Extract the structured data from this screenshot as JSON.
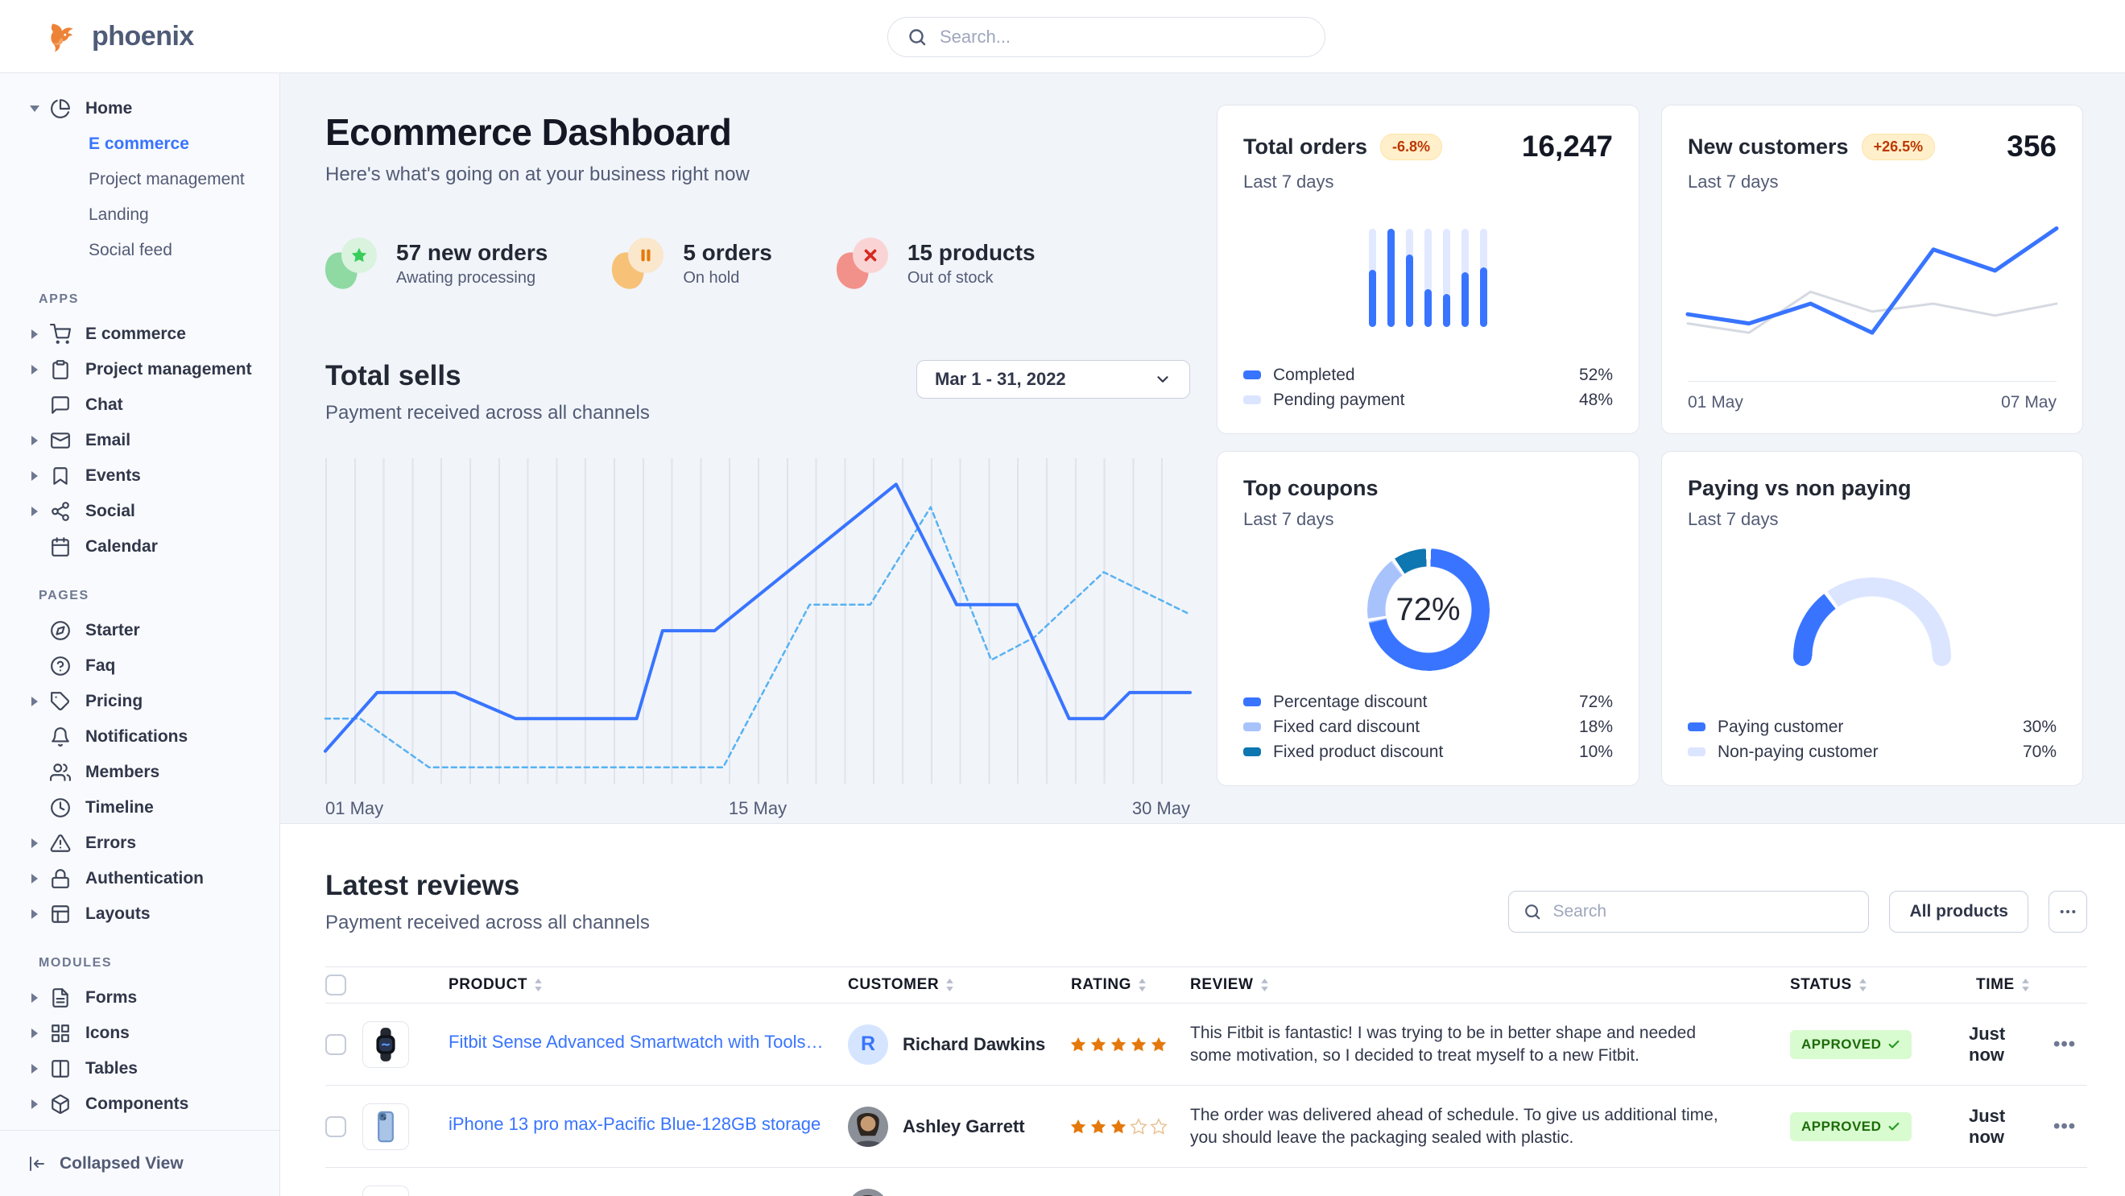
{
  "theme": {
    "primary": "#3874ff",
    "primary_light": "#dbe5ff",
    "donut_light": "#a8c2fc",
    "info_dark": "#0e76b1",
    "dashed_line": "#58b2f2",
    "gray_line": "#d5d9e1"
  },
  "navbar": {
    "logo_text": "phoenix",
    "search_placeholder": "Search..."
  },
  "sidebar": {
    "groups": [
      {
        "label": "",
        "items": [
          {
            "label": "Home",
            "icon": "pie-chart",
            "caret": "down",
            "children": [
              {
                "label": "E commerce",
                "active": true
              },
              {
                "label": "Project management",
                "active": false
              },
              {
                "label": "Landing",
                "active": false
              },
              {
                "label": "Social feed",
                "active": false
              }
            ]
          }
        ]
      },
      {
        "label": "APPS",
        "items": [
          {
            "label": "E commerce",
            "icon": "cart",
            "caret": "right"
          },
          {
            "label": "Project management",
            "icon": "clipboard",
            "caret": "right"
          },
          {
            "label": "Chat",
            "icon": "chat",
            "caret": ""
          },
          {
            "label": "Email",
            "icon": "mail",
            "caret": "right"
          },
          {
            "label": "Events",
            "icon": "bookmark",
            "caret": "right"
          },
          {
            "label": "Social",
            "icon": "share",
            "caret": "right"
          },
          {
            "label": "Calendar",
            "icon": "calendar",
            "caret": ""
          }
        ]
      },
      {
        "label": "PAGES",
        "items": [
          {
            "label": "Starter",
            "icon": "compass",
            "caret": ""
          },
          {
            "label": "Faq",
            "icon": "help-circle",
            "caret": ""
          },
          {
            "label": "Pricing",
            "icon": "tag",
            "caret": "right"
          },
          {
            "label": "Notifications",
            "icon": "bell",
            "caret": ""
          },
          {
            "label": "Members",
            "icon": "users",
            "caret": ""
          },
          {
            "label": "Timeline",
            "icon": "clock",
            "caret": ""
          },
          {
            "label": "Errors",
            "icon": "alert-triangle",
            "caret": "right"
          },
          {
            "label": "Authentication",
            "icon": "lock",
            "caret": "right"
          },
          {
            "label": "Layouts",
            "icon": "layout",
            "caret": "right"
          }
        ]
      },
      {
        "label": "MODULES",
        "items": [
          {
            "label": "Forms",
            "icon": "file-text",
            "caret": "right"
          },
          {
            "label": "Icons",
            "icon": "grid",
            "caret": "right"
          },
          {
            "label": "Tables",
            "icon": "columns",
            "caret": "right"
          },
          {
            "label": "Components",
            "icon": "package",
            "caret": "right"
          }
        ]
      }
    ],
    "footer_label": "Collapsed View"
  },
  "page": {
    "title": "Ecommerce Dashboard",
    "subtitle": "Here's what's going on at your business right now"
  },
  "stats": [
    {
      "value": "57 new orders",
      "caption": "Awating processing",
      "icon": "star",
      "blob": "#8fd9a2",
      "circle": "#d9f3de",
      "glyph": "#39cc5a"
    },
    {
      "value": "5 orders",
      "caption": "On hold",
      "icon": "pause",
      "blob": "#f7c277",
      "circle": "#fae7cc",
      "glyph": "#e5780b"
    },
    {
      "value": "15 products",
      "caption": "Out of stock",
      "icon": "x",
      "blob": "#f2918a",
      "circle": "#fad4d4",
      "glyph": "#d5281f"
    }
  ],
  "total_sells": {
    "title": "Total sells",
    "subtitle": "Payment received across all channels",
    "date_range": "Mar 1 - 31, 2022",
    "x_labels": [
      "01 May",
      "15 May",
      "30 May"
    ]
  },
  "cards": {
    "total_orders": {
      "title": "Total orders",
      "badge": "-6.8%",
      "subtitle": "Last 7 days",
      "value": "16,247",
      "legend": [
        {
          "label": "Completed",
          "value": "52%",
          "color": "#3874ff"
        },
        {
          "label": "Pending payment",
          "value": "48%",
          "color": "#dbe5ff"
        }
      ]
    },
    "new_customers": {
      "title": "New customers",
      "badge": "+26.5%",
      "subtitle": "Last 7 days",
      "value": "356",
      "x_labels": [
        "01 May",
        "07 May"
      ]
    },
    "top_coupons": {
      "title": "Top coupons",
      "subtitle": "Last 7 days",
      "center_label": "72%",
      "legend": [
        {
          "label": "Percentage discount",
          "value": "72%",
          "color": "#3874ff"
        },
        {
          "label": "Fixed card discount",
          "value": "18%",
          "color": "#a8c2fc"
        },
        {
          "label": "Fixed product discount",
          "value": "10%",
          "color": "#0e76b1"
        }
      ]
    },
    "paying": {
      "title": "Paying vs non paying",
      "subtitle": "Last 7 days",
      "legend": [
        {
          "label": "Paying customer",
          "value": "30%",
          "color": "#3874ff"
        },
        {
          "label": "Non-paying customer",
          "value": "70%",
          "color": "#dbe5ff"
        }
      ]
    }
  },
  "chart_data": [
    {
      "id": "total-sells",
      "type": "line",
      "title": "Total sells",
      "x_labels": [
        "01 May",
        "15 May",
        "30 May"
      ],
      "ylim": [
        0,
        100
      ],
      "grid": "vertical",
      "series": [
        {
          "name": "current",
          "style": "solid",
          "color": "#3874ff",
          "points": [
            [
              0,
              10
            ],
            [
              6,
              28
            ],
            [
              15,
              28
            ],
            [
              22,
              20
            ],
            [
              36,
              20
            ],
            [
              39,
              47
            ],
            [
              45,
              47
            ],
            [
              66,
              92
            ],
            [
              73,
              55
            ],
            [
              80,
              55
            ],
            [
              86,
              20
            ],
            [
              90,
              20
            ],
            [
              93,
              28
            ],
            [
              100,
              28
            ]
          ]
        },
        {
          "name": "previous",
          "style": "dashed",
          "color": "#58b2f2",
          "points": [
            [
              0,
              20
            ],
            [
              4,
              20
            ],
            [
              12,
              5
            ],
            [
              46,
              5
            ],
            [
              56,
              55
            ],
            [
              63,
              55
            ],
            [
              70,
              85
            ],
            [
              77,
              38
            ],
            [
              82,
              45
            ],
            [
              90,
              65
            ],
            [
              100,
              52
            ]
          ]
        }
      ]
    },
    {
      "id": "total-orders",
      "type": "bar",
      "title": "Total orders",
      "completed_pct": [
        58,
        100,
        73,
        38,
        33,
        55,
        60
      ],
      "legend_values": {
        "completed": 52,
        "pending": 48
      }
    },
    {
      "id": "new-customers",
      "type": "line",
      "title": "New customers",
      "x_labels": [
        "01 May",
        "07 May"
      ],
      "ylim": [
        0,
        100
      ],
      "series": [
        {
          "name": "previous",
          "style": "solid",
          "color": "#d5d9e1",
          "points": [
            [
              0,
              24
            ],
            [
              16.6,
              17
            ],
            [
              33.3,
              48
            ],
            [
              50,
              33
            ],
            [
              66.6,
              39
            ],
            [
              83.3,
              30
            ],
            [
              100,
              39
            ]
          ]
        },
        {
          "name": "current",
          "style": "solid",
          "color": "#3874ff",
          "points": [
            [
              0,
              31
            ],
            [
              16.6,
              24
            ],
            [
              33.3,
              39
            ],
            [
              50,
              17
            ],
            [
              66.6,
              80
            ],
            [
              83.3,
              64
            ],
            [
              100,
              96
            ]
          ]
        }
      ]
    },
    {
      "id": "top-coupons",
      "type": "pie",
      "title": "Top coupons",
      "center_label": "72%",
      "values": [
        72,
        18,
        10
      ],
      "colors": [
        "#3874ff",
        "#a8c2fc",
        "#0e76b1"
      ],
      "labels": [
        "Percentage discount",
        "Fixed card discount",
        "Fixed product discount"
      ]
    },
    {
      "id": "paying-gauge",
      "type": "pie",
      "title": "Paying vs non paying",
      "values": [
        30,
        70
      ],
      "colors": [
        "#3874ff",
        "#dbe5ff"
      ],
      "labels": [
        "Paying customer",
        "Non-paying customer"
      ]
    }
  ],
  "reviews": {
    "title": "Latest reviews",
    "subtitle": "Payment received across all channels",
    "search_placeholder": "Search",
    "filter_button": "All products",
    "more_button": "...",
    "columns": [
      "PRODUCT",
      "CUSTOMER",
      "RATING",
      "REVIEW",
      "STATUS",
      "TIME"
    ],
    "rows": [
      {
        "product": "Fitbit Sense Advanced Smartwatch with Tools fo...",
        "product_image": "smartwatch",
        "customer": "Richard Dawkins",
        "avatar_type": "initial",
        "avatar": "R",
        "rating": 5,
        "review": "This Fitbit is fantastic! I was trying to be in better shape and needed some motivation, so I decided to treat myself to a new Fitbit.",
        "status": "APPROVED",
        "time": "Just now"
      },
      {
        "product": "iPhone 13 pro max-Pacific Blue-128GB storage",
        "product_image": "iphone",
        "customer": "Ashley Garrett",
        "avatar_type": "photo",
        "avatar": "",
        "rating": 3,
        "review": "The order was delivered ahead of schedule. To give us additional time, you should leave the packaging sealed with plastic.",
        "status": "APPROVED",
        "time": "Just now"
      }
    ],
    "partial_third_row": true
  }
}
